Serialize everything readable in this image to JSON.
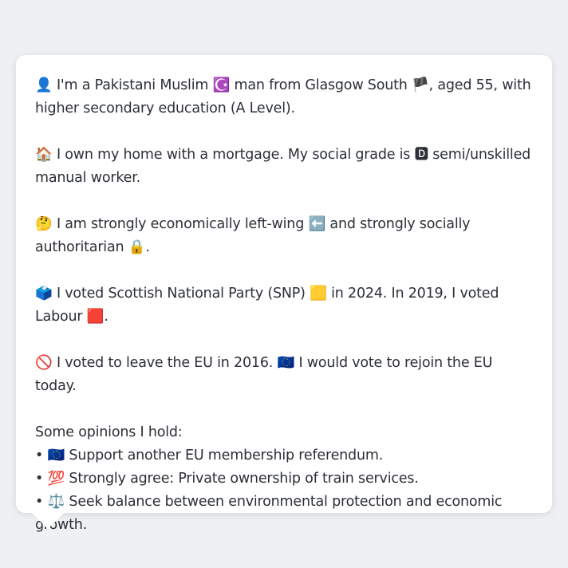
{
  "profile": {
    "intro": "👤 I'm a Pakistani Muslim ☪️ man from Glasgow South 🏴, aged 55, with higher secondary education (A Level).",
    "home": "🏠 I own my home with a mortgage. My social grade is 🅳 semi/unskilled manual worker.",
    "ideology": "🤔 I am strongly economically left-wing ⬅️ and strongly socially authoritarian 🔒.",
    "votes": "🗳️ I voted Scottish National Party (SNP) 🟨 in 2024. In 2019, I voted Labour 🟥.",
    "eu": "🚫 I voted to leave the EU in 2016. 🇪🇺 I would vote to rejoin the EU today.",
    "opinions_heading": "Some opinions I hold:",
    "opinions": [
      "• 🇪🇺 Support another EU membership referendum.",
      "• 💯 Strongly agree: Private ownership of train services.",
      "• ⚖️ Seek balance between environmental protection and economic growth."
    ]
  }
}
